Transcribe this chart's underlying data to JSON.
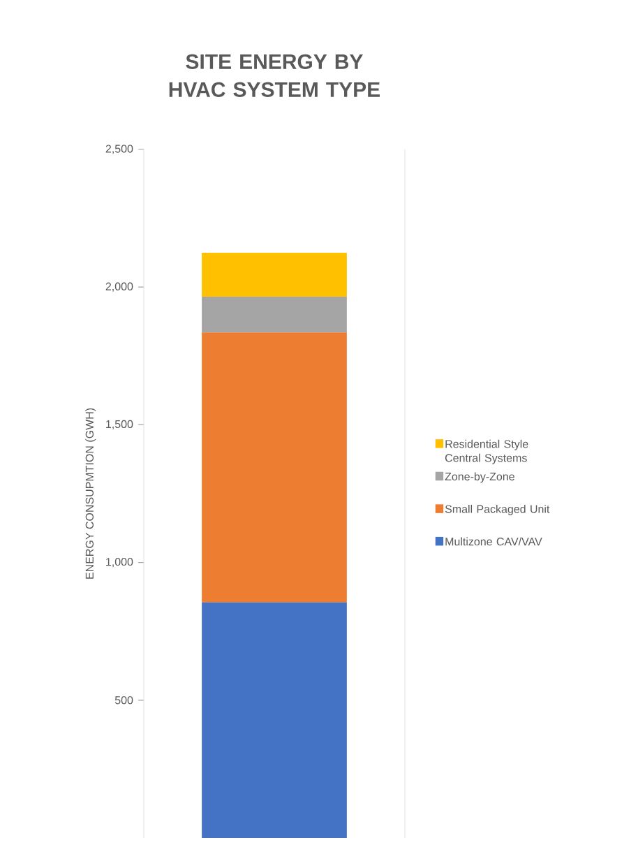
{
  "chart_data": {
    "type": "bar",
    "stacked": true,
    "title": "SITE ENERGY BY HVAC SYSTEM TYPE",
    "ylabel": "ENERGY CONSUPMTION (GWH)",
    "categories": [
      null
    ],
    "series": [
      {
        "name": "Multizone CAV/VAV",
        "color": "#4472c4",
        "values": [
          855
        ]
      },
      {
        "name": "Small Packaged Unit",
        "color": "#ed7d31",
        "values": [
          980
        ]
      },
      {
        "name": "Zone-by-Zone",
        "color": "#a5a5a5",
        "values": [
          130
        ]
      },
      {
        "name": "Residential Style Central Systems",
        "color": "#ffc000",
        "values": [
          160
        ]
      }
    ],
    "ylim": [
      0,
      2500
    ],
    "yticks": [
      500,
      {
        "value": 1000,
        "label": "1,000"
      },
      {
        "value": 1500,
        "label": "1,500"
      },
      {
        "value": 2000,
        "label": "2,000"
      },
      {
        "value": 2500,
        "label": "2,500"
      }
    ],
    "legend": "right",
    "grid": false
  }
}
